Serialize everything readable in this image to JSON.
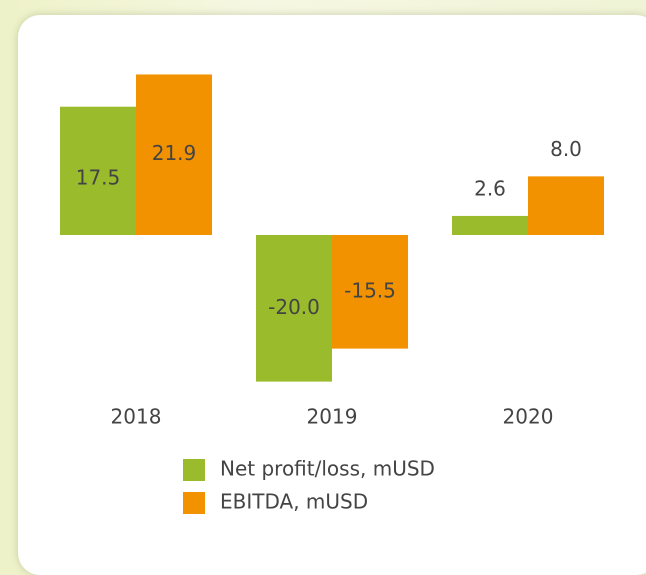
{
  "chart_data": {
    "type": "bar",
    "categories": [
      "2018",
      "2019",
      "2020"
    ],
    "series": [
      {
        "name": "Net profit/loss, mUSD",
        "color": "#99bb2c",
        "values": [
          17.5,
          -20.0,
          2.6
        ],
        "value_labels": [
          "17.5",
          "-20.0",
          "2.6"
        ]
      },
      {
        "name": "EBITDA, mUSD",
        "color": "#f39200",
        "values": [
          21.9,
          -15.5,
          8.0
        ],
        "value_labels": [
          "21.9",
          "-15.5",
          "8.0"
        ]
      }
    ],
    "legend": "bottom"
  }
}
